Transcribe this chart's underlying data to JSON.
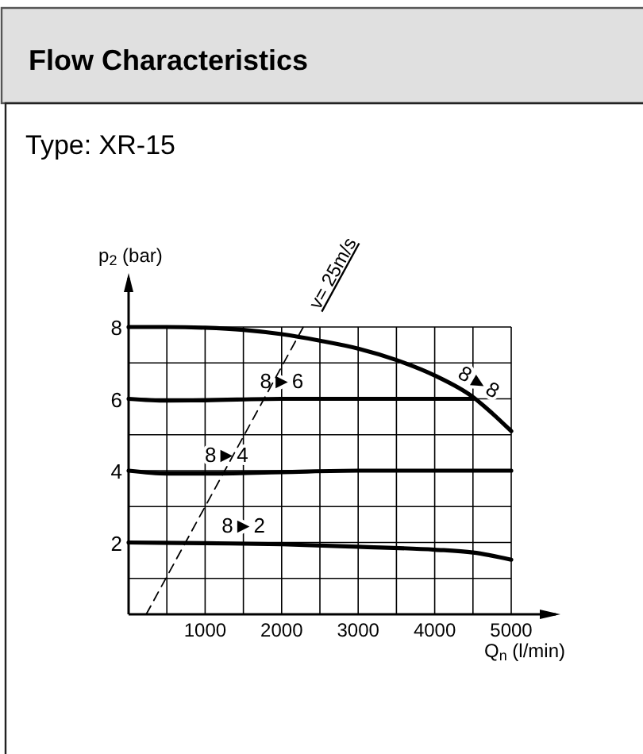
{
  "chart_data": {
    "type": "line",
    "title": "Flow Characteristics",
    "subtitle": "Type: XR-15",
    "xlabel": "Q$_{n}$ (l/min)",
    "ylabel": "p$_{2}$ (bar)",
    "xlim": [
      0,
      5000
    ],
    "ylim": [
      0,
      8
    ],
    "xticks": [
      {
        "value": 500,
        "label": null
      },
      1000,
      {
        "value": 1500,
        "label": null
      },
      2000,
      {
        "value": 2500,
        "label": null
      },
      3000,
      {
        "value": 3500,
        "label": null
      },
      4000,
      {
        "value": 4500,
        "label": null
      },
      5000
    ],
    "yticks": [
      {
        "value": 1,
        "label": null
      },
      2,
      {
        "value": 3,
        "label": null
      },
      4,
      {
        "value": 5,
        "label": null
      },
      6,
      {
        "value": 7,
        "label": null
      },
      8
    ],
    "grid": true,
    "series": [
      {
        "name": "8►8",
        "color": "#000000",
        "x": [
          0,
          500,
          1000,
          1500,
          2000,
          2500,
          3000,
          3500,
          4000,
          4500,
          4750,
          5000
        ],
        "values": [
          8,
          8,
          7.98,
          7.92,
          7.8,
          7.62,
          7.4,
          7.08,
          6.65,
          6.05,
          5.6,
          5.1
        ]
      },
      {
        "name": "8►6",
        "color": "#000000",
        "x": [
          0,
          500,
          1000,
          2000,
          3000,
          4000,
          4500
        ],
        "values": [
          6,
          5.95,
          5.96,
          6,
          6,
          6,
          6
        ]
      },
      {
        "name": "8►4",
        "color": "#000000",
        "x": [
          0,
          500,
          1000,
          2000,
          3000,
          4000,
          5000
        ],
        "values": [
          4,
          3.92,
          3.92,
          3.96,
          4,
          4,
          4
        ]
      },
      {
        "name": "8►2",
        "color": "#000000",
        "x": [
          0,
          1000,
          2000,
          3000,
          4000,
          4500,
          5000
        ],
        "values": [
          2,
          1.98,
          1.95,
          1.88,
          1.8,
          1.72,
          1.52
        ]
      },
      {
        "name": "v= 25m/s",
        "color": "#000000",
        "line_style": "dashed",
        "x": [
          230,
          2283
        ],
        "values": [
          0,
          8
        ]
      }
    ]
  }
}
